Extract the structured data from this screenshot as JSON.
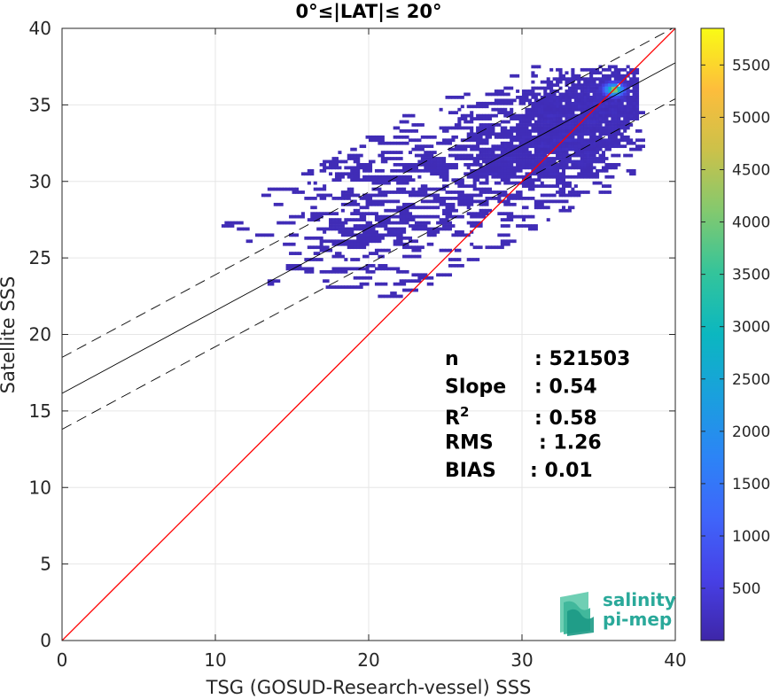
{
  "chart_data": {
    "type": "heatmap",
    "title": "0°≤|LAT|≤ 20°",
    "xlabel": "TSG (GOSUD-Research-vessel) SSS",
    "ylabel": "Satellite SSS",
    "xlim": [
      0,
      40
    ],
    "ylim": [
      0,
      40
    ],
    "xticks": [
      "0",
      "10",
      "20",
      "30",
      "40"
    ],
    "yticks": [
      "0",
      "5",
      "10",
      "15",
      "20",
      "25",
      "30",
      "35",
      "40"
    ],
    "grid": true,
    "colorbar": {
      "range": [
        1,
        5850
      ],
      "ticks": [
        "500",
        "1000",
        "1500",
        "2000",
        "2500",
        "3000",
        "3500",
        "4000",
        "4500",
        "5000",
        "5500"
      ],
      "tick_values": [
        500,
        1000,
        1500,
        2000,
        2500,
        3000,
        3500,
        4000,
        4500,
        5000,
        5500
      ],
      "colormap": "parula"
    },
    "lines": {
      "identity": {
        "slope": 1.0,
        "intercept": 0.0,
        "color": "#ff0000"
      },
      "regression": {
        "slope": 0.54,
        "intercept": 16.15,
        "color": "#000000"
      },
      "upper_bound": {
        "slope": 0.54,
        "intercept": 18.5,
        "color": "#000000",
        "style": "dashed"
      },
      "lower_bound": {
        "slope": 0.54,
        "intercept": 13.8,
        "color": "#000000",
        "style": "dashed"
      }
    },
    "stats": [
      {
        "label": "n",
        "value": ": 521503"
      },
      {
        "label": "Slope",
        "value": ": 0.54"
      },
      {
        "label": "R",
        "sup": "2",
        "value": ": 0.58"
      },
      {
        "label": "RMS",
        "value": ": 1.26"
      },
      {
        "label": "BIAS",
        "value": ": 0.01"
      }
    ],
    "density_clusters": [
      {
        "x": 35.5,
        "y": 35.5,
        "sx": 1.6,
        "sy": 0.9,
        "weight": 1.0
      },
      {
        "x": 33.5,
        "y": 33.5,
        "sx": 2.2,
        "sy": 1.5,
        "weight": 0.55
      },
      {
        "x": 30.5,
        "y": 32.0,
        "sx": 2.8,
        "sy": 1.8,
        "weight": 0.35
      },
      {
        "x": 25.0,
        "y": 30.5,
        "sx": 4.5,
        "sy": 2.2,
        "weight": 0.15
      },
      {
        "x": 20.0,
        "y": 27.0,
        "sx": 3.5,
        "sy": 2.0,
        "weight": 0.12
      },
      {
        "x": 12.0,
        "y": 31.2,
        "sx": 5.0,
        "sy": 0.9,
        "weight": 0.06
      }
    ],
    "peak": {
      "x": 35.9,
      "y": 35.9,
      "value": 5850
    }
  },
  "logo": {
    "line1": "salinity",
    "line2": "pi-mep"
  }
}
